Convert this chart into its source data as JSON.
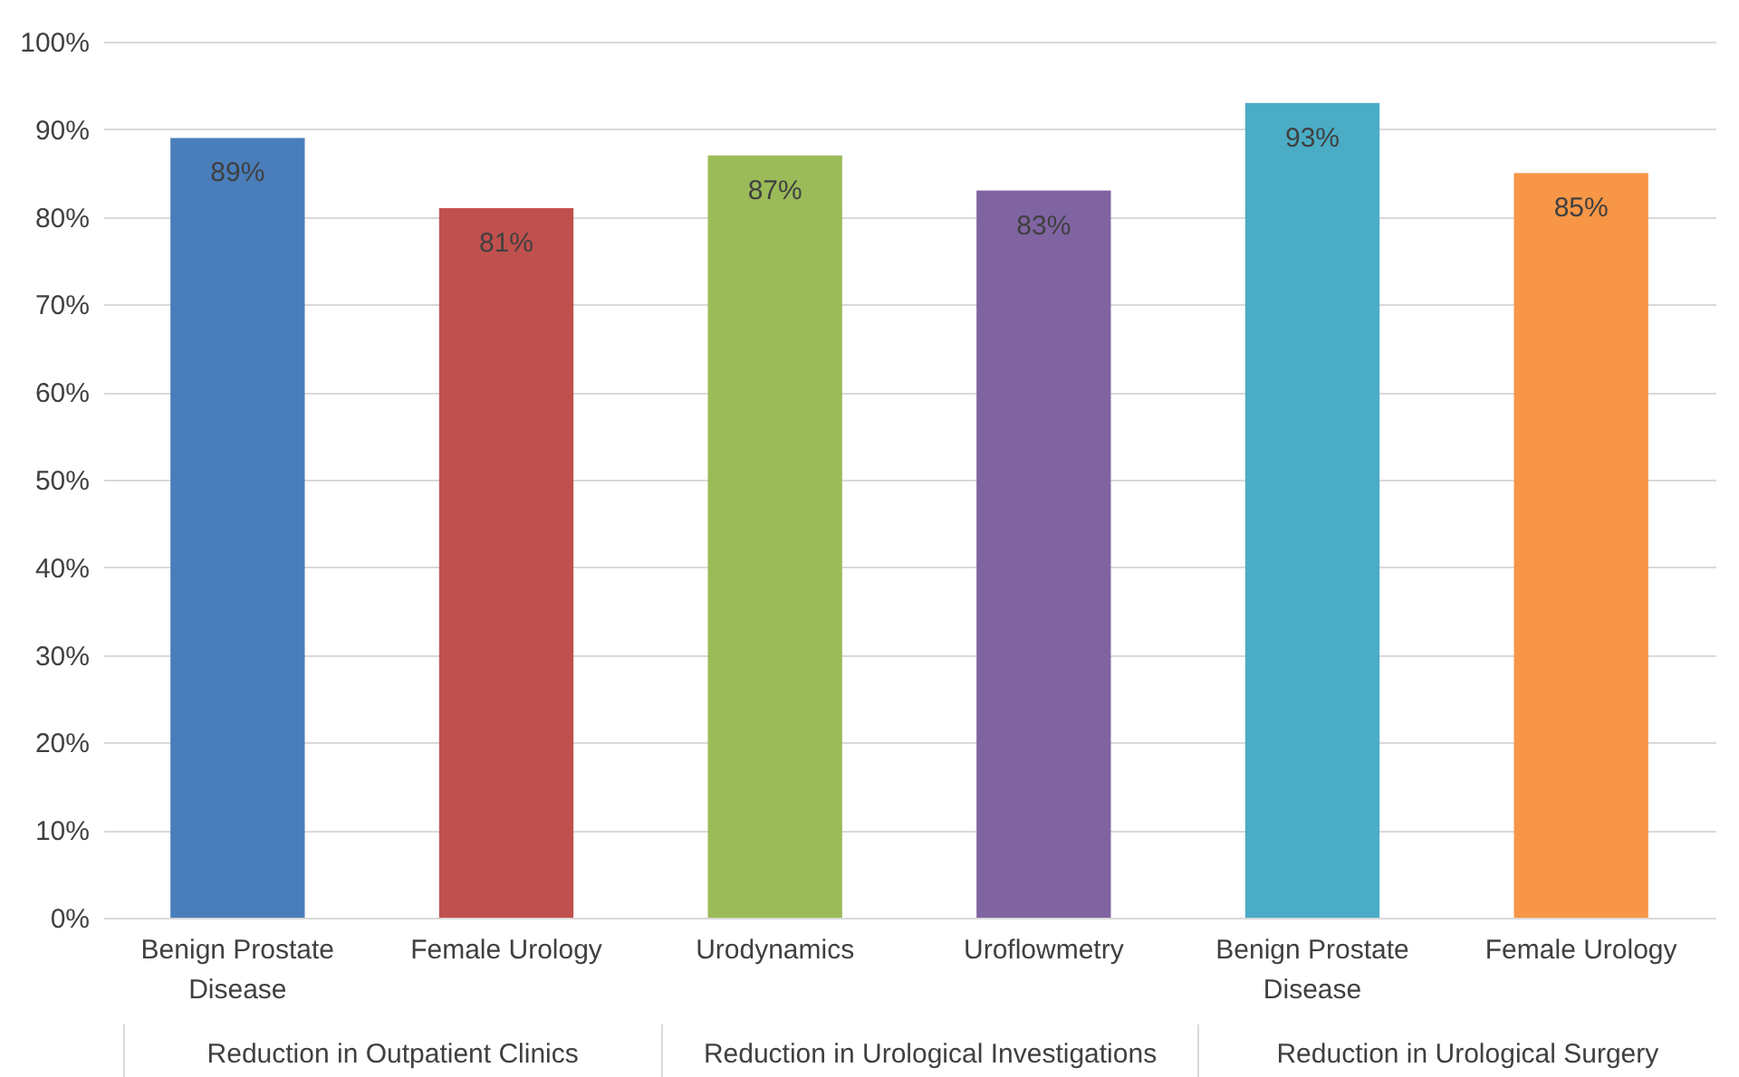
{
  "chart_data": {
    "type": "bar",
    "categories": [
      "Benign Prostate Disease",
      "Female Urology",
      "Urodynamics",
      "Uroflowmetry",
      "Benign Prostate Disease",
      "Female Urology"
    ],
    "values": [
      89,
      81,
      87,
      83,
      93,
      85
    ],
    "colors": [
      "#4a7ebb",
      "#c0504d",
      "#9bbb59",
      "#8064a2",
      "#4bacc6",
      "#f79646"
    ],
    "value_labels": [
      "89%",
      "81%",
      "87%",
      "83%",
      "93%",
      "85%"
    ],
    "ylim": [
      0,
      100
    ],
    "yticks": [
      {
        "value": 0,
        "label": "0%"
      },
      {
        "value": 10,
        "label": "10%"
      },
      {
        "value": 20,
        "label": "20%"
      },
      {
        "value": 30,
        "label": "30%"
      },
      {
        "value": 40,
        "label": "40%"
      },
      {
        "value": 50,
        "label": "50%"
      },
      {
        "value": 60,
        "label": "60%"
      },
      {
        "value": 70,
        "label": "70%"
      },
      {
        "value": 80,
        "label": "80%"
      },
      {
        "value": 90,
        "label": "90%"
      },
      {
        "value": 100,
        "label": "100%"
      }
    ],
    "grid": "y",
    "annotations": [
      "Reduction in Outpatient Clinics",
      "Reduction in Urological Investigations",
      "Reduction in Urological Surgery"
    ]
  }
}
